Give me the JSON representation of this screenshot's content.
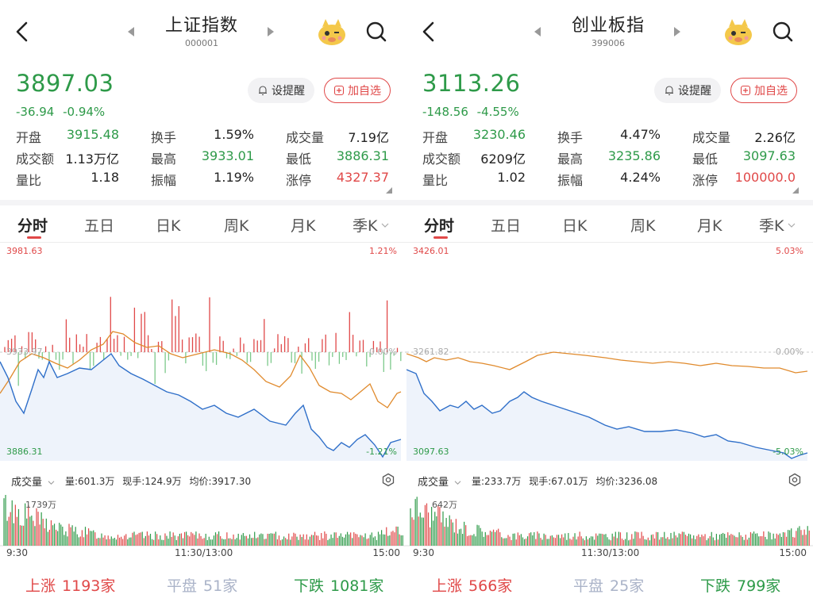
{
  "labels": {
    "alert_btn": "设提醒",
    "add_btn": "加自选",
    "vol_selector": "成交量",
    "stat_labels": [
      "开盘",
      "换手",
      "成交量",
      "成交额",
      "最高",
      "最低",
      "量比",
      "振幅",
      "涨停"
    ],
    "tabs": [
      "分时",
      "五日",
      "日K",
      "周K",
      "月K",
      "季K"
    ],
    "time_axis": [
      "9:30",
      "11:30/13:00",
      "15:00"
    ],
    "breadth_labels": [
      "上涨",
      "平盘",
      "下跌"
    ],
    "vol_prefixes": [
      "量:",
      "现手:",
      "均价:"
    ]
  },
  "colors": {
    "up": "#e04848",
    "down": "#2e9a49",
    "flat": "#aab3c8",
    "price_line": "#2f6fc9",
    "avg_line": "#e08a2c"
  },
  "icons": [
    "back-icon",
    "prev-arrow-icon",
    "next-arrow-icon",
    "mascot-icon",
    "search-icon",
    "bell-icon",
    "plus-icon",
    "settings-icon",
    "chevron-down-icon"
  ],
  "panels": [
    {
      "title": "上证指数",
      "code": "000001",
      "price": "3897.03",
      "change": "-36.94  -0.94%",
      "stats": [
        {
          "value": "3915.48",
          "color": "green"
        },
        {
          "value": "1.59%",
          "color": "black"
        },
        {
          "value": "7.19亿",
          "color": "black"
        },
        {
          "value": "1.13万亿",
          "color": "black"
        },
        {
          "value": "3933.01",
          "color": "green"
        },
        {
          "value": "3886.31",
          "color": "green"
        },
        {
          "value": "1.18",
          "color": "black"
        },
        {
          "value": "1.19%",
          "color": "black"
        },
        {
          "value": "4327.37",
          "color": "red"
        }
      ],
      "chart": {
        "top_price": "3981.63",
        "top_pct": "1.21%",
        "mid_price": "3933.97",
        "mid_pct": "0.00%",
        "bottom_price": "3886.31",
        "bottom_pct": "-1.21%",
        "show_breadth_bars": true
      },
      "volume": {
        "vol": "601.3万",
        "hand": "124.9万",
        "avg": "3917.30",
        "max": "1739万"
      },
      "breadth": {
        "up": "1193家",
        "flat": "51家",
        "down": "1081家"
      }
    },
    {
      "title": "创业板指",
      "code": "399006",
      "price": "3113.26",
      "change": "-148.56  -4.55%",
      "stats": [
        {
          "value": "3230.46",
          "color": "green"
        },
        {
          "value": "4.47%",
          "color": "black"
        },
        {
          "value": "2.26亿",
          "color": "black"
        },
        {
          "value": "6209亿",
          "color": "black"
        },
        {
          "value": "3235.86",
          "color": "green"
        },
        {
          "value": "3097.63",
          "color": "green"
        },
        {
          "value": "1.02",
          "color": "black"
        },
        {
          "value": "4.24%",
          "color": "black"
        },
        {
          "value": "100000.0",
          "color": "red"
        }
      ],
      "chart": {
        "top_price": "3426.01",
        "top_pct": "5.03%",
        "mid_price": "3261.82",
        "mid_pct": "0.00%",
        "bottom_price": "3097.63",
        "bottom_pct": "-5.03%",
        "show_breadth_bars": false
      },
      "volume": {
        "vol": "233.7万",
        "hand": "67.01万",
        "avg": "3236.08",
        "max": "642万"
      },
      "breadth": {
        "up": "566家",
        "flat": "25家",
        "down": "799家"
      }
    }
  ]
}
